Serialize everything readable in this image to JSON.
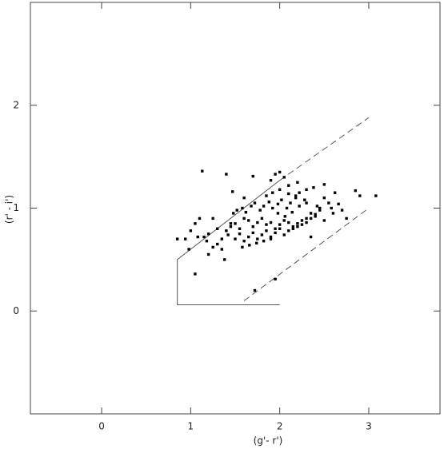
{
  "chart_data": {
    "type": "scatter",
    "xlabel": "(g'- r')",
    "ylabel": "(r' - i')",
    "xlim": [
      -0.8,
      3.8
    ],
    "ylim": [
      -1.0,
      3.0
    ],
    "xticks": [
      0,
      1,
      2,
      3
    ],
    "yticks": [
      0,
      1,
      2
    ],
    "color": "#000000",
    "x": [
      1.13,
      1.4,
      1.7,
      1.9,
      2.0,
      1.95,
      2.05,
      2.5,
      1.47,
      0.85,
      0.94,
      0.98,
      1.05,
      1.72,
      1.95,
      2.62,
      2.85,
      3.08,
      2.9,
      2.7,
      2.55,
      2.5,
      2.35,
      1.2,
      1.35,
      1.38,
      1.05,
      1.1,
      1.25,
      1.0,
      1.15,
      1.2,
      1.3,
      1.4,
      1.45,
      1.5,
      1.55,
      1.6,
      1.65,
      1.7,
      1.75,
      1.8,
      1.85,
      1.9,
      1.95,
      2.0,
      2.05,
      2.1,
      2.15,
      2.2,
      2.25,
      2.3,
      2.35,
      2.4,
      2.45,
      1.5,
      1.55,
      1.6,
      1.65,
      1.7,
      1.75,
      1.8,
      1.85,
      1.9,
      1.95,
      2.0,
      2.05,
      2.1,
      2.15,
      2.2,
      2.25,
      2.3,
      2.35,
      2.4,
      2.45,
      1.3,
      1.35,
      1.42,
      1.48,
      1.52,
      1.58,
      1.62,
      1.68,
      1.72,
      1.78,
      1.82,
      1.88,
      1.92,
      1.98,
      2.02,
      2.08,
      2.12,
      2.18,
      2.22,
      2.28,
      1.58,
      1.66,
      1.74,
      1.82,
      1.9,
      1.98,
      2.06,
      2.14,
      2.22,
      2.3,
      2.38,
      2.6,
      2.75,
      2.2,
      2.1,
      1.6,
      1.45,
      1.25,
      1.18,
      1.08,
      1.85,
      1.92,
      2.0,
      2.1,
      2.18,
      2.3,
      2.42,
      2.5,
      2.58,
      2.66
    ],
    "y": [
      1.36,
      1.33,
      1.31,
      1.27,
      1.35,
      1.33,
      1.3,
      1.23,
      1.16,
      0.7,
      0.7,
      0.6,
      0.36,
      0.2,
      0.31,
      1.15,
      1.17,
      1.12,
      1.12,
      0.98,
      1.05,
      0.88,
      0.72,
      0.55,
      0.6,
      0.5,
      0.85,
      0.9,
      0.9,
      0.78,
      0.72,
      0.75,
      0.8,
      0.78,
      0.82,
      0.85,
      0.8,
      0.9,
      0.88,
      0.82,
      0.86,
      0.9,
      0.84,
      0.86,
      0.8,
      0.84,
      0.88,
      0.86,
      0.82,
      0.85,
      0.88,
      0.9,
      0.95,
      0.92,
      0.98,
      0.7,
      0.75,
      0.68,
      0.72,
      0.76,
      0.7,
      0.74,
      0.78,
      0.72,
      0.76,
      0.8,
      0.74,
      0.78,
      0.8,
      0.82,
      0.84,
      0.86,
      0.9,
      0.94,
      1.0,
      0.65,
      0.7,
      0.74,
      0.95,
      0.98,
      1.0,
      0.96,
      1.02,
      1.05,
      0.98,
      1.02,
      1.06,
      1.0,
      1.04,
      1.08,
      1.0,
      1.05,
      1.1,
      1.02,
      1.08,
      0.62,
      0.64,
      0.66,
      0.68,
      0.7,
      0.95,
      0.92,
      0.96,
      1.15,
      1.18,
      1.2,
      0.95,
      0.9,
      1.25,
      1.22,
      1.1,
      0.85,
      0.62,
      0.68,
      0.72,
      1.12,
      1.15,
      1.18,
      1.14,
      1.12,
      1.05,
      1.02,
      1.1,
      1.0,
      1.04
    ],
    "lines": [
      {
        "x": [
          2.0,
          0.85,
          0.85,
          2.0
        ],
        "y": [
          0.06,
          0.06,
          0.5,
          1.27
        ],
        "style": "solid"
      },
      {
        "x": [
          2.0,
          3.0
        ],
        "y": [
          1.27,
          1.88
        ],
        "style": "dashed"
      },
      {
        "x": [
          1.6,
          3.0
        ],
        "y": [
          0.1,
          1.0
        ],
        "style": "dashed"
      }
    ]
  }
}
